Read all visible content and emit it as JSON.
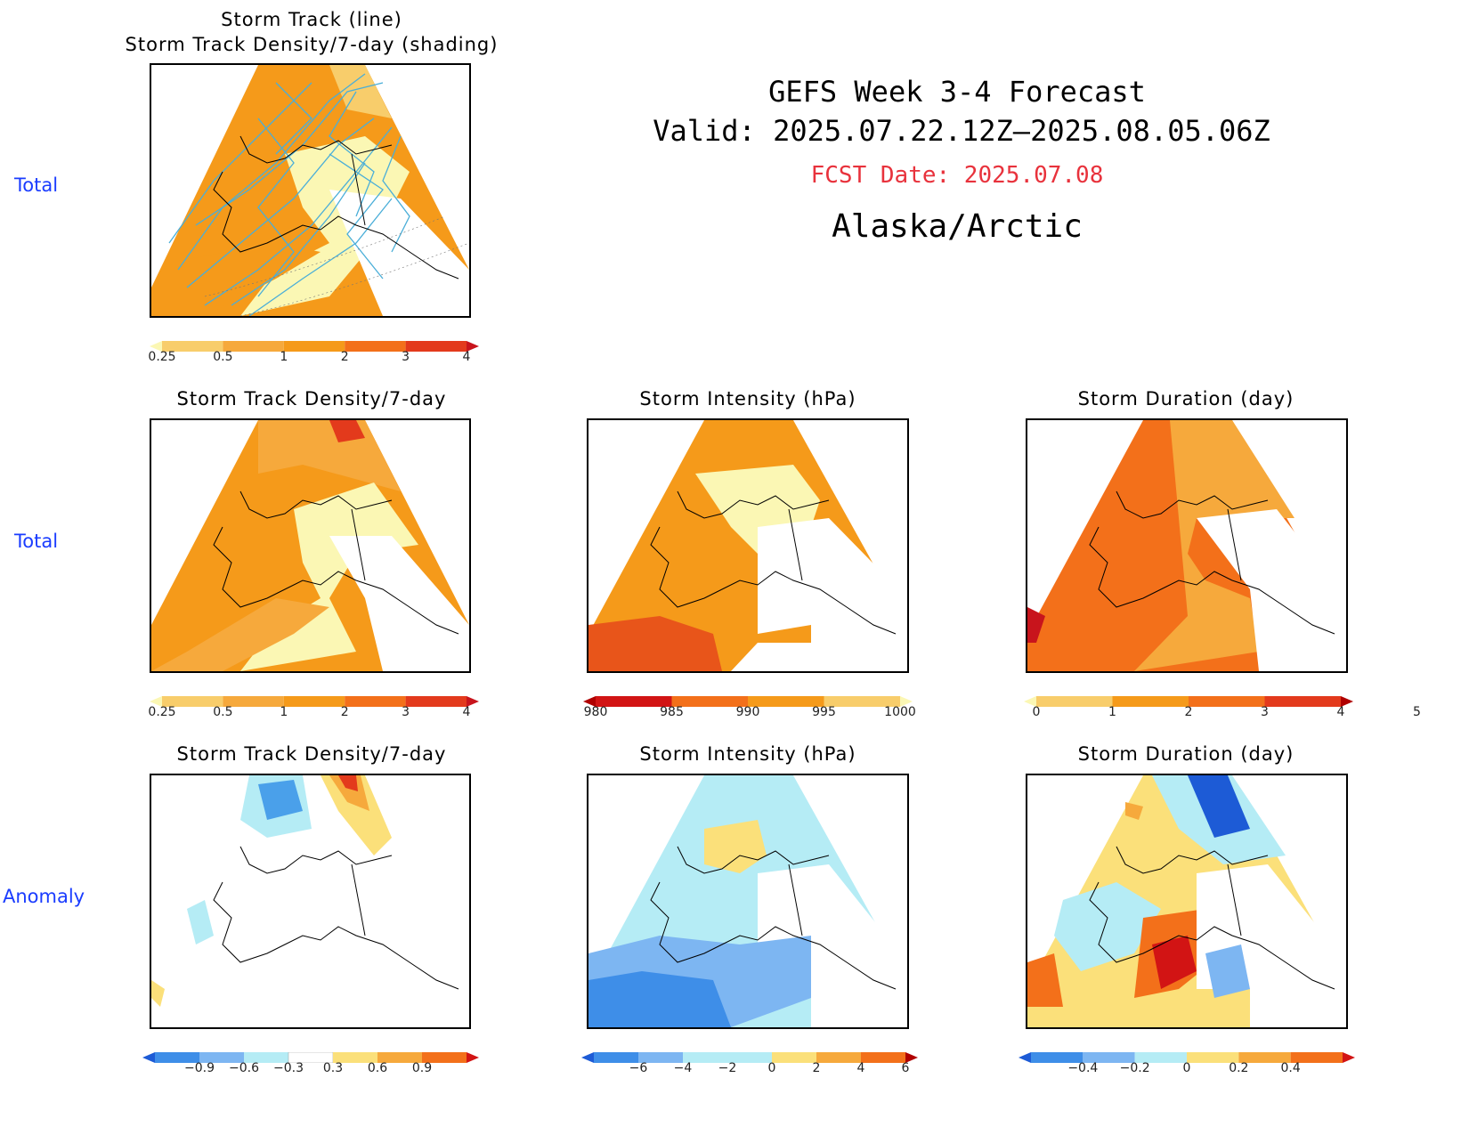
{
  "header": {
    "line1": "GEFS Week 3-4 Forecast",
    "line2": "Valid: 2025.07.22.12Z–2025.08.05.06Z",
    "fcst_date": "FCST Date: 2025.07.08",
    "region": "Alaska/Arctic",
    "fcst_color": "#e8323c"
  },
  "rows": {
    "r1": "Total",
    "r2": "Total",
    "r3": "Anomaly"
  },
  "panels": {
    "p1": {
      "title": "Storm Track (line)\nStorm Track Density/7-day (shading)"
    },
    "p2": {
      "title": "Storm Track Density/7-day"
    },
    "p3": {
      "title": "Storm Intensity (hPa)"
    },
    "p4": {
      "title": "Storm Duration (day)"
    },
    "p5": {
      "title": "Storm Track Density/7-day"
    },
    "p6": {
      "title": "Storm Intensity (hPa)"
    },
    "p7": {
      "title": "Storm Duration (day)"
    }
  },
  "colorbars": {
    "density": {
      "ticks": [
        "0.25",
        "0.5",
        "1",
        "2",
        "3",
        "4"
      ],
      "colors": [
        "#fbf7b4",
        "#f8cd6b",
        "#f6a93c",
        "#f59a1a",
        "#f3701a",
        "#e33a1c",
        "#c8141c"
      ]
    },
    "intensity": {
      "ticks": [
        "980",
        "985",
        "990",
        "995",
        "1000"
      ],
      "colors": [
        "#b00000",
        "#d21414",
        "#f3701a",
        "#f59a1a",
        "#f8cd6b",
        "#fbf7b4"
      ]
    },
    "duration": {
      "ticks": [
        "0",
        "1",
        "2",
        "3",
        "4",
        "5"
      ],
      "colors": [
        "#fbf7b4",
        "#f8cd6b",
        "#f59a1a",
        "#f3701a",
        "#e33a1c",
        "#b00000"
      ]
    },
    "anom_density": {
      "ticks": [
        "−0.9",
        "−0.6",
        "−0.3",
        "0.3",
        "0.6",
        "0.9"
      ],
      "colors": [
        "#1d5bd6",
        "#3e8ee8",
        "#7db6f2",
        "#b5ecf5",
        "#ffffff",
        "#fbe07a",
        "#f6a93c",
        "#f3701a",
        "#d21414"
      ]
    },
    "anom_intensity": {
      "ticks": [
        "−6",
        "−4",
        "−2",
        "0",
        "2",
        "4",
        "6"
      ],
      "colors": [
        "#1d5bd6",
        "#3e8ee8",
        "#7db6f2",
        "#b5ecf5",
        "#b5ecf5",
        "#fbe07a",
        "#f6a93c",
        "#f3701a",
        "#b00000"
      ]
    },
    "anom_duration": {
      "ticks": [
        "−0.4",
        "−0.2",
        "0",
        "0.2",
        "0.4"
      ],
      "colors": [
        "#1d5bd6",
        "#3e8ee8",
        "#7db6f2",
        "#b5ecf5",
        "#fbe07a",
        "#f6a93c",
        "#f3701a",
        "#d21414"
      ]
    }
  }
}
